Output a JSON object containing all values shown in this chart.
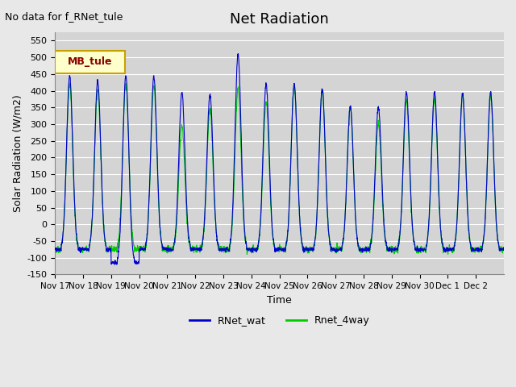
{
  "title": "Net Radiation",
  "ylabel": "Solar Radiation (W/m2)",
  "xlabel": "Time",
  "top_left_text": "No data for f_RNet_tule",
  "legend_box_text": "MB_tule",
  "legend_box_color": "#c8a000",
  "legend_box_bg": "#ffffcc",
  "ylim": [
    -150,
    575
  ],
  "yticks": [
    -150,
    -100,
    -50,
    0,
    50,
    100,
    150,
    200,
    250,
    300,
    350,
    400,
    450,
    500,
    550
  ],
  "xtick_labels": [
    "Nov 17",
    "Nov 18",
    "Nov 19",
    "Nov 20",
    "Nov 21",
    "Nov 22",
    "Nov 23",
    "Nov 24",
    "Nov 25",
    "Nov 26",
    "Nov 27",
    "Nov 28",
    "Nov 29",
    "Nov 30",
    "Dec 1",
    "Dec 2"
  ],
  "color_blue": "#0000cc",
  "color_green": "#00cc00",
  "background_color": "#e8e8e8",
  "plot_bg_color": "#d4d4d4",
  "grid_color": "#ffffff",
  "legend_blue_label": "RNet_wat",
  "legend_green_label": "Rnet_4way",
  "num_days": 16,
  "day_peaks_blue": [
    445,
    430,
    445,
    440,
    395,
    390,
    510,
    420,
    420,
    405,
    355,
    350,
    395,
    395,
    390,
    395
  ],
  "day_peaks_green": [
    420,
    405,
    420,
    415,
    295,
    345,
    405,
    365,
    415,
    400,
    350,
    300,
    370,
    375,
    390,
    385
  ],
  "special_night_blue": {
    "2": -115
  },
  "night_b": -75,
  "night_g": -75
}
